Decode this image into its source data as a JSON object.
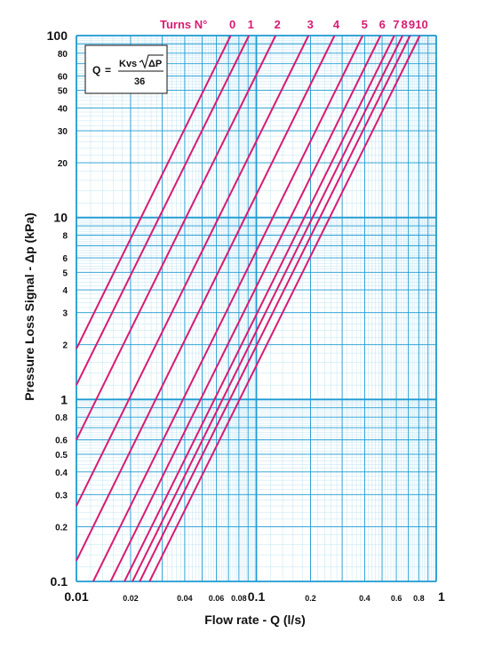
{
  "chart_data": {
    "type": "line",
    "x_scale": "log",
    "y_scale": "log",
    "xlim": [
      0.01,
      1
    ],
    "ylim": [
      0.1,
      100
    ],
    "grid": true,
    "xlabel": "Flow rate - Q (l/s)",
    "ylabel": "Pressure Loss Signal  - Δp (kPa)",
    "series_header": "Turns N°",
    "formula": {
      "lhs": "Q",
      "eq": "=",
      "numerator_kvs": "Kvs",
      "numerator_dp": "ΔP",
      "denominator": "36"
    },
    "x_ticks": [
      {
        "value": 0.01,
        "label": "0.01",
        "major": true
      },
      {
        "value": 0.02,
        "label": "0.02",
        "major": false
      },
      {
        "value": 0.04,
        "label": "0.04",
        "major": false
      },
      {
        "value": 0.06,
        "label": "0.06",
        "major": false
      },
      {
        "value": 0.08,
        "label": "0.08",
        "major": false
      },
      {
        "value": 0.1,
        "label": "0.1",
        "major": true
      },
      {
        "value": 0.2,
        "label": "0.2",
        "major": false
      },
      {
        "value": 0.4,
        "label": "0.4",
        "major": false
      },
      {
        "value": 0.6,
        "label": "0.6",
        "major": false
      },
      {
        "value": 0.8,
        "label": "0.8",
        "major": false
      },
      {
        "value": 1,
        "label": "1",
        "major": true
      }
    ],
    "y_ticks": [
      {
        "value": 0.1,
        "label": "0.1",
        "major": true
      },
      {
        "value": 0.2,
        "label": "0.2",
        "major": false
      },
      {
        "value": 0.3,
        "label": "0.3",
        "major": false
      },
      {
        "value": 0.4,
        "label": "0.4",
        "major": false
      },
      {
        "value": 0.5,
        "label": "0.5",
        "major": false
      },
      {
        "value": 0.6,
        "label": "0.6",
        "major": false
      },
      {
        "value": 0.8,
        "label": "0.8",
        "major": false
      },
      {
        "value": 1,
        "label": "1",
        "major": true
      },
      {
        "value": 2,
        "label": "2",
        "major": false
      },
      {
        "value": 3,
        "label": "3",
        "major": false
      },
      {
        "value": 4,
        "label": "4",
        "major": false
      },
      {
        "value": 5,
        "label": "5",
        "major": false
      },
      {
        "value": 6,
        "label": "6",
        "major": false
      },
      {
        "value": 8,
        "label": "8",
        "major": false
      },
      {
        "value": 10,
        "label": "10",
        "major": true
      },
      {
        "value": 20,
        "label": "20",
        "major": false
      },
      {
        "value": 30,
        "label": "30",
        "major": false
      },
      {
        "value": 40,
        "label": "40",
        "major": false
      },
      {
        "value": 50,
        "label": "50",
        "major": false
      },
      {
        "value": 60,
        "label": "60",
        "major": false
      },
      {
        "value": 80,
        "label": "80",
        "major": false
      },
      {
        "value": 100,
        "label": "100",
        "major": true
      }
    ],
    "series": [
      {
        "name": "0",
        "x": [
          0.01,
          0.072
        ],
        "y": [
          1.9,
          100
        ]
      },
      {
        "name": "1",
        "x": [
          0.01,
          0.091
        ],
        "y": [
          1.2,
          100
        ]
      },
      {
        "name": "2",
        "x": [
          0.01,
          0.128
        ],
        "y": [
          0.6,
          100
        ]
      },
      {
        "name": "3",
        "x": [
          0.01,
          0.195
        ],
        "y": [
          0.26,
          100
        ]
      },
      {
        "name": "4",
        "x": [
          0.01,
          0.272
        ],
        "y": [
          0.13,
          100
        ]
      },
      {
        "name": "5",
        "x": [
          0.0124,
          0.39
        ],
        "y": [
          0.1,
          100
        ]
      },
      {
        "name": "6",
        "x": [
          0.0155,
          0.49
        ],
        "y": [
          0.1,
          100
        ]
      },
      {
        "name": "7",
        "x": [
          0.0185,
          0.585
        ],
        "y": [
          0.1,
          100
        ]
      },
      {
        "name": "8",
        "x": [
          0.0205,
          0.65
        ],
        "y": [
          0.1,
          100
        ]
      },
      {
        "name": "9",
        "x": [
          0.0225,
          0.715
        ],
        "y": [
          0.1,
          100
        ]
      },
      {
        "name": "10",
        "x": [
          0.0255,
          0.81
        ],
        "y": [
          0.1,
          100
        ]
      }
    ],
    "colors": {
      "curve": "#d81b73",
      "grid_major": "#1e9ad2",
      "grid_minor": "#bfe3f3",
      "label": "#d81b73"
    }
  }
}
